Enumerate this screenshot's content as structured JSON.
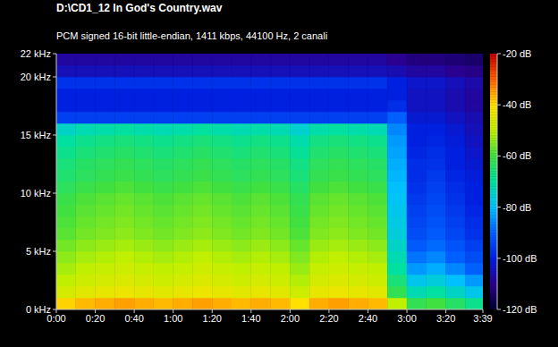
{
  "chart_data": {
    "type": "heatmap",
    "title": "D:\\CD1_12 In God's Country.wav",
    "subtitle": "PCM signed 16-bit little-endian, 1411 kbps, 44100 Hz, 2 canali",
    "xbins": [
      0,
      10,
      20,
      30,
      40,
      50,
      60,
      70,
      80,
      90,
      100,
      110,
      120,
      130,
      140,
      150,
      160,
      170,
      180,
      190,
      200,
      210,
      219
    ],
    "ybins": [
      0,
      1,
      2,
      3,
      4,
      5,
      6,
      7,
      8,
      9,
      10,
      11,
      12,
      13,
      14,
      15,
      16,
      17,
      18,
      19,
      20,
      21,
      22
    ],
    "xlim": [
      0,
      219
    ],
    "xticks": [
      {
        "value": 0,
        "label": "0:00"
      },
      {
        "value": 20,
        "label": "0:20"
      },
      {
        "value": 40,
        "label": "0:40"
      },
      {
        "value": 60,
        "label": "1:00"
      },
      {
        "value": 80,
        "label": "1:20"
      },
      {
        "value": 100,
        "label": "1:40"
      },
      {
        "value": 120,
        "label": "2:00"
      },
      {
        "value": 140,
        "label": "2:20"
      },
      {
        "value": 160,
        "label": "2:40"
      },
      {
        "value": 180,
        "label": "3:00"
      },
      {
        "value": 200,
        "label": "3:20"
      },
      {
        "value": 219,
        "label": "3:39"
      }
    ],
    "ylim": [
      0,
      22
    ],
    "yticks": [
      {
        "value": 0,
        "label": "0 kHz"
      },
      {
        "value": 5,
        "label": "5 kHz"
      },
      {
        "value": 10,
        "label": "10 kHz"
      },
      {
        "value": 15,
        "label": "15 kHz"
      },
      {
        "value": 20,
        "label": "20 kHz"
      },
      {
        "value": 22,
        "label": "22 kHz"
      }
    ],
    "grid": false,
    "cells": [
      [
        -39,
        -37,
        -36,
        -35,
        -36,
        -37,
        -36,
        -35,
        -36,
        -37,
        -36,
        -37,
        -40,
        -36,
        -35,
        -36,
        -37,
        -50,
        -62,
        -60,
        -64,
        -68
      ],
      [
        -47,
        -45,
        -44,
        -43,
        -44,
        -45,
        -44,
        -43,
        -44,
        -45,
        -44,
        -45,
        -48,
        -44,
        -43,
        -44,
        -45,
        -62,
        -72,
        -70,
        -74,
        -78
      ],
      [
        -50,
        -48,
        -47,
        -46,
        -47,
        -48,
        -47,
        -46,
        -47,
        -48,
        -47,
        -48,
        -51,
        -47,
        -46,
        -47,
        -48,
        -66,
        -78,
        -76,
        -80,
        -84
      ],
      [
        -52,
        -50,
        -49,
        -48,
        -49,
        -50,
        -49,
        -48,
        -49,
        -50,
        -49,
        -50,
        -53,
        -49,
        -48,
        -49,
        -50,
        -70,
        -84,
        -82,
        -86,
        -90
      ],
      [
        -54,
        -52,
        -51,
        -50,
        -51,
        -52,
        -51,
        -50,
        -51,
        -52,
        -51,
        -52,
        -55,
        -51,
        -50,
        -51,
        -52,
        -72,
        -88,
        -86,
        -90,
        -93
      ],
      [
        -56,
        -54,
        -53,
        -52,
        -53,
        -54,
        -53,
        -52,
        -53,
        -54,
        -53,
        -54,
        -57,
        -53,
        -52,
        -53,
        -54,
        -74,
        -91,
        -89,
        -92,
        -95
      ],
      [
        -58,
        -56,
        -55,
        -54,
        -55,
        -56,
        -55,
        -54,
        -55,
        -56,
        -55,
        -56,
        -59,
        -55,
        -54,
        -55,
        -56,
        -76,
        -93,
        -91,
        -94,
        -97
      ],
      [
        -59,
        -57,
        -56,
        -55,
        -56,
        -57,
        -56,
        -55,
        -56,
        -57,
        -56,
        -57,
        -60,
        -56,
        -55,
        -56,
        -57,
        -77,
        -94,
        -92,
        -95,
        -98
      ],
      [
        -60,
        -58,
        -57,
        -56,
        -57,
        -58,
        -57,
        -56,
        -57,
        -58,
        -57,
        -58,
        -61,
        -57,
        -56,
        -57,
        -58,
        -78,
        -95,
        -93,
        -96,
        -99
      ],
      [
        -61,
        -59,
        -58,
        -57,
        -58,
        -59,
        -58,
        -57,
        -58,
        -59,
        -58,
        -59,
        -62,
        -58,
        -57,
        -58,
        -59,
        -79,
        -96,
        -94,
        -97,
        -100
      ],
      [
        -63,
        -61,
        -60,
        -59,
        -60,
        -61,
        -60,
        -59,
        -60,
        -61,
        -60,
        -61,
        -64,
        -60,
        -59,
        -60,
        -61,
        -80,
        -97,
        -95,
        -98,
        -100
      ],
      [
        -65,
        -63,
        -62,
        -61,
        -62,
        -63,
        -62,
        -61,
        -62,
        -63,
        -62,
        -63,
        -66,
        -62,
        -61,
        -62,
        -63,
        -81,
        -98,
        -96,
        -99,
        -101
      ],
      [
        -66,
        -64,
        -63,
        -62,
        -63,
        -64,
        -63,
        -62,
        -63,
        -64,
        -63,
        -64,
        -67,
        -63,
        -62,
        -63,
        -64,
        -82,
        -98,
        -97,
        -100,
        -102
      ],
      [
        -68,
        -66,
        -65,
        -64,
        -65,
        -66,
        -65,
        -64,
        -65,
        -66,
        -65,
        -66,
        -69,
        -65,
        -64,
        -65,
        -66,
        -83,
        -99,
        -98,
        -100,
        -103
      ],
      [
        -70,
        -68,
        -67,
        -66,
        -67,
        -68,
        -67,
        -66,
        -67,
        -68,
        -67,
        -68,
        -71,
        -67,
        -66,
        -67,
        -68,
        -84,
        -100,
        -99,
        -101,
        -104
      ],
      [
        -74,
        -72,
        -71,
        -70,
        -71,
        -72,
        -71,
        -70,
        -71,
        -72,
        -71,
        -72,
        -75,
        -71,
        -70,
        -71,
        -72,
        -86,
        -100,
        -100,
        -102,
        -105
      ],
      [
        -95,
        -95,
        -95,
        -95,
        -95,
        -95,
        -95,
        -95,
        -95,
        -95,
        -95,
        -95,
        -95,
        -95,
        -95,
        -95,
        -95,
        -90,
        -102,
        -102,
        -104,
        -106
      ],
      [
        -100,
        -100,
        -100,
        -100,
        -100,
        -100,
        -100,
        -100,
        -100,
        -100,
        -100,
        -100,
        -100,
        -100,
        -100,
        -100,
        -100,
        -98,
        -104,
        -104,
        -106,
        -108
      ],
      [
        -100,
        -100,
        -100,
        -100,
        -100,
        -100,
        -100,
        -100,
        -100,
        -100,
        -100,
        -100,
        -100,
        -100,
        -100,
        -100,
        -100,
        -100,
        -104,
        -104,
        -106,
        -108
      ],
      [
        -97,
        -97,
        -97,
        -97,
        -97,
        -97,
        -97,
        -97,
        -97,
        -97,
        -97,
        -97,
        -97,
        -97,
        -97,
        -97,
        -97,
        -100,
        -103,
        -103,
        -105,
        -107
      ],
      [
        -105,
        -105,
        -105,
        -105,
        -105,
        -105,
        -105,
        -105,
        -105,
        -105,
        -105,
        -105,
        -105,
        -105,
        -105,
        -105,
        -105,
        -106,
        -108,
        -108,
        -110,
        -111
      ],
      [
        -108,
        -108,
        -108,
        -108,
        -108,
        -108,
        -108,
        -108,
        -108,
        -108,
        -108,
        -108,
        -108,
        -108,
        -108,
        -108,
        -108,
        -110,
        -112,
        -112,
        -113,
        -114
      ]
    ],
    "colorbar": {
      "range": [
        -120,
        -20
      ],
      "ticks": [
        {
          "value": -20,
          "label": "-20 dB"
        },
        {
          "value": -40,
          "label": "-40 dB"
        },
        {
          "value": -60,
          "label": "-60 dB"
        },
        {
          "value": -80,
          "label": "-80 dB"
        },
        {
          "value": -100,
          "label": "-100 dB"
        },
        {
          "value": -120,
          "label": "-120 dB"
        }
      ]
    }
  }
}
